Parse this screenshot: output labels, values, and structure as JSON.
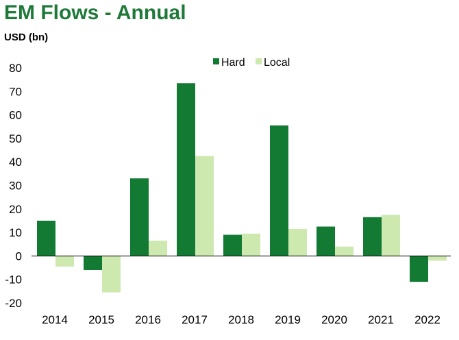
{
  "title": "EM Flows - Annual",
  "units_label": "USD (bn)",
  "chart_data": {
    "type": "bar",
    "categories": [
      "2014",
      "2015",
      "2016",
      "2017",
      "2018",
      "2019",
      "2020",
      "2021",
      "2022"
    ],
    "series": [
      {
        "name": "Hard",
        "color": "#127a32",
        "values": [
          15,
          -6,
          33,
          73.5,
          9,
          55.5,
          12.5,
          16.5,
          -11
        ]
      },
      {
        "name": "Local",
        "color": "#cde9b0",
        "values": [
          -4.5,
          -15.5,
          6.5,
          42.5,
          9.5,
          11.5,
          4,
          17.5,
          -2
        ]
      }
    ],
    "ylim": [
      -20,
      80
    ],
    "yticks": [
      -20,
      -10,
      0,
      10,
      20,
      30,
      40,
      50,
      60,
      70,
      80
    ],
    "legend_position": "top-center",
    "grid": false
  }
}
